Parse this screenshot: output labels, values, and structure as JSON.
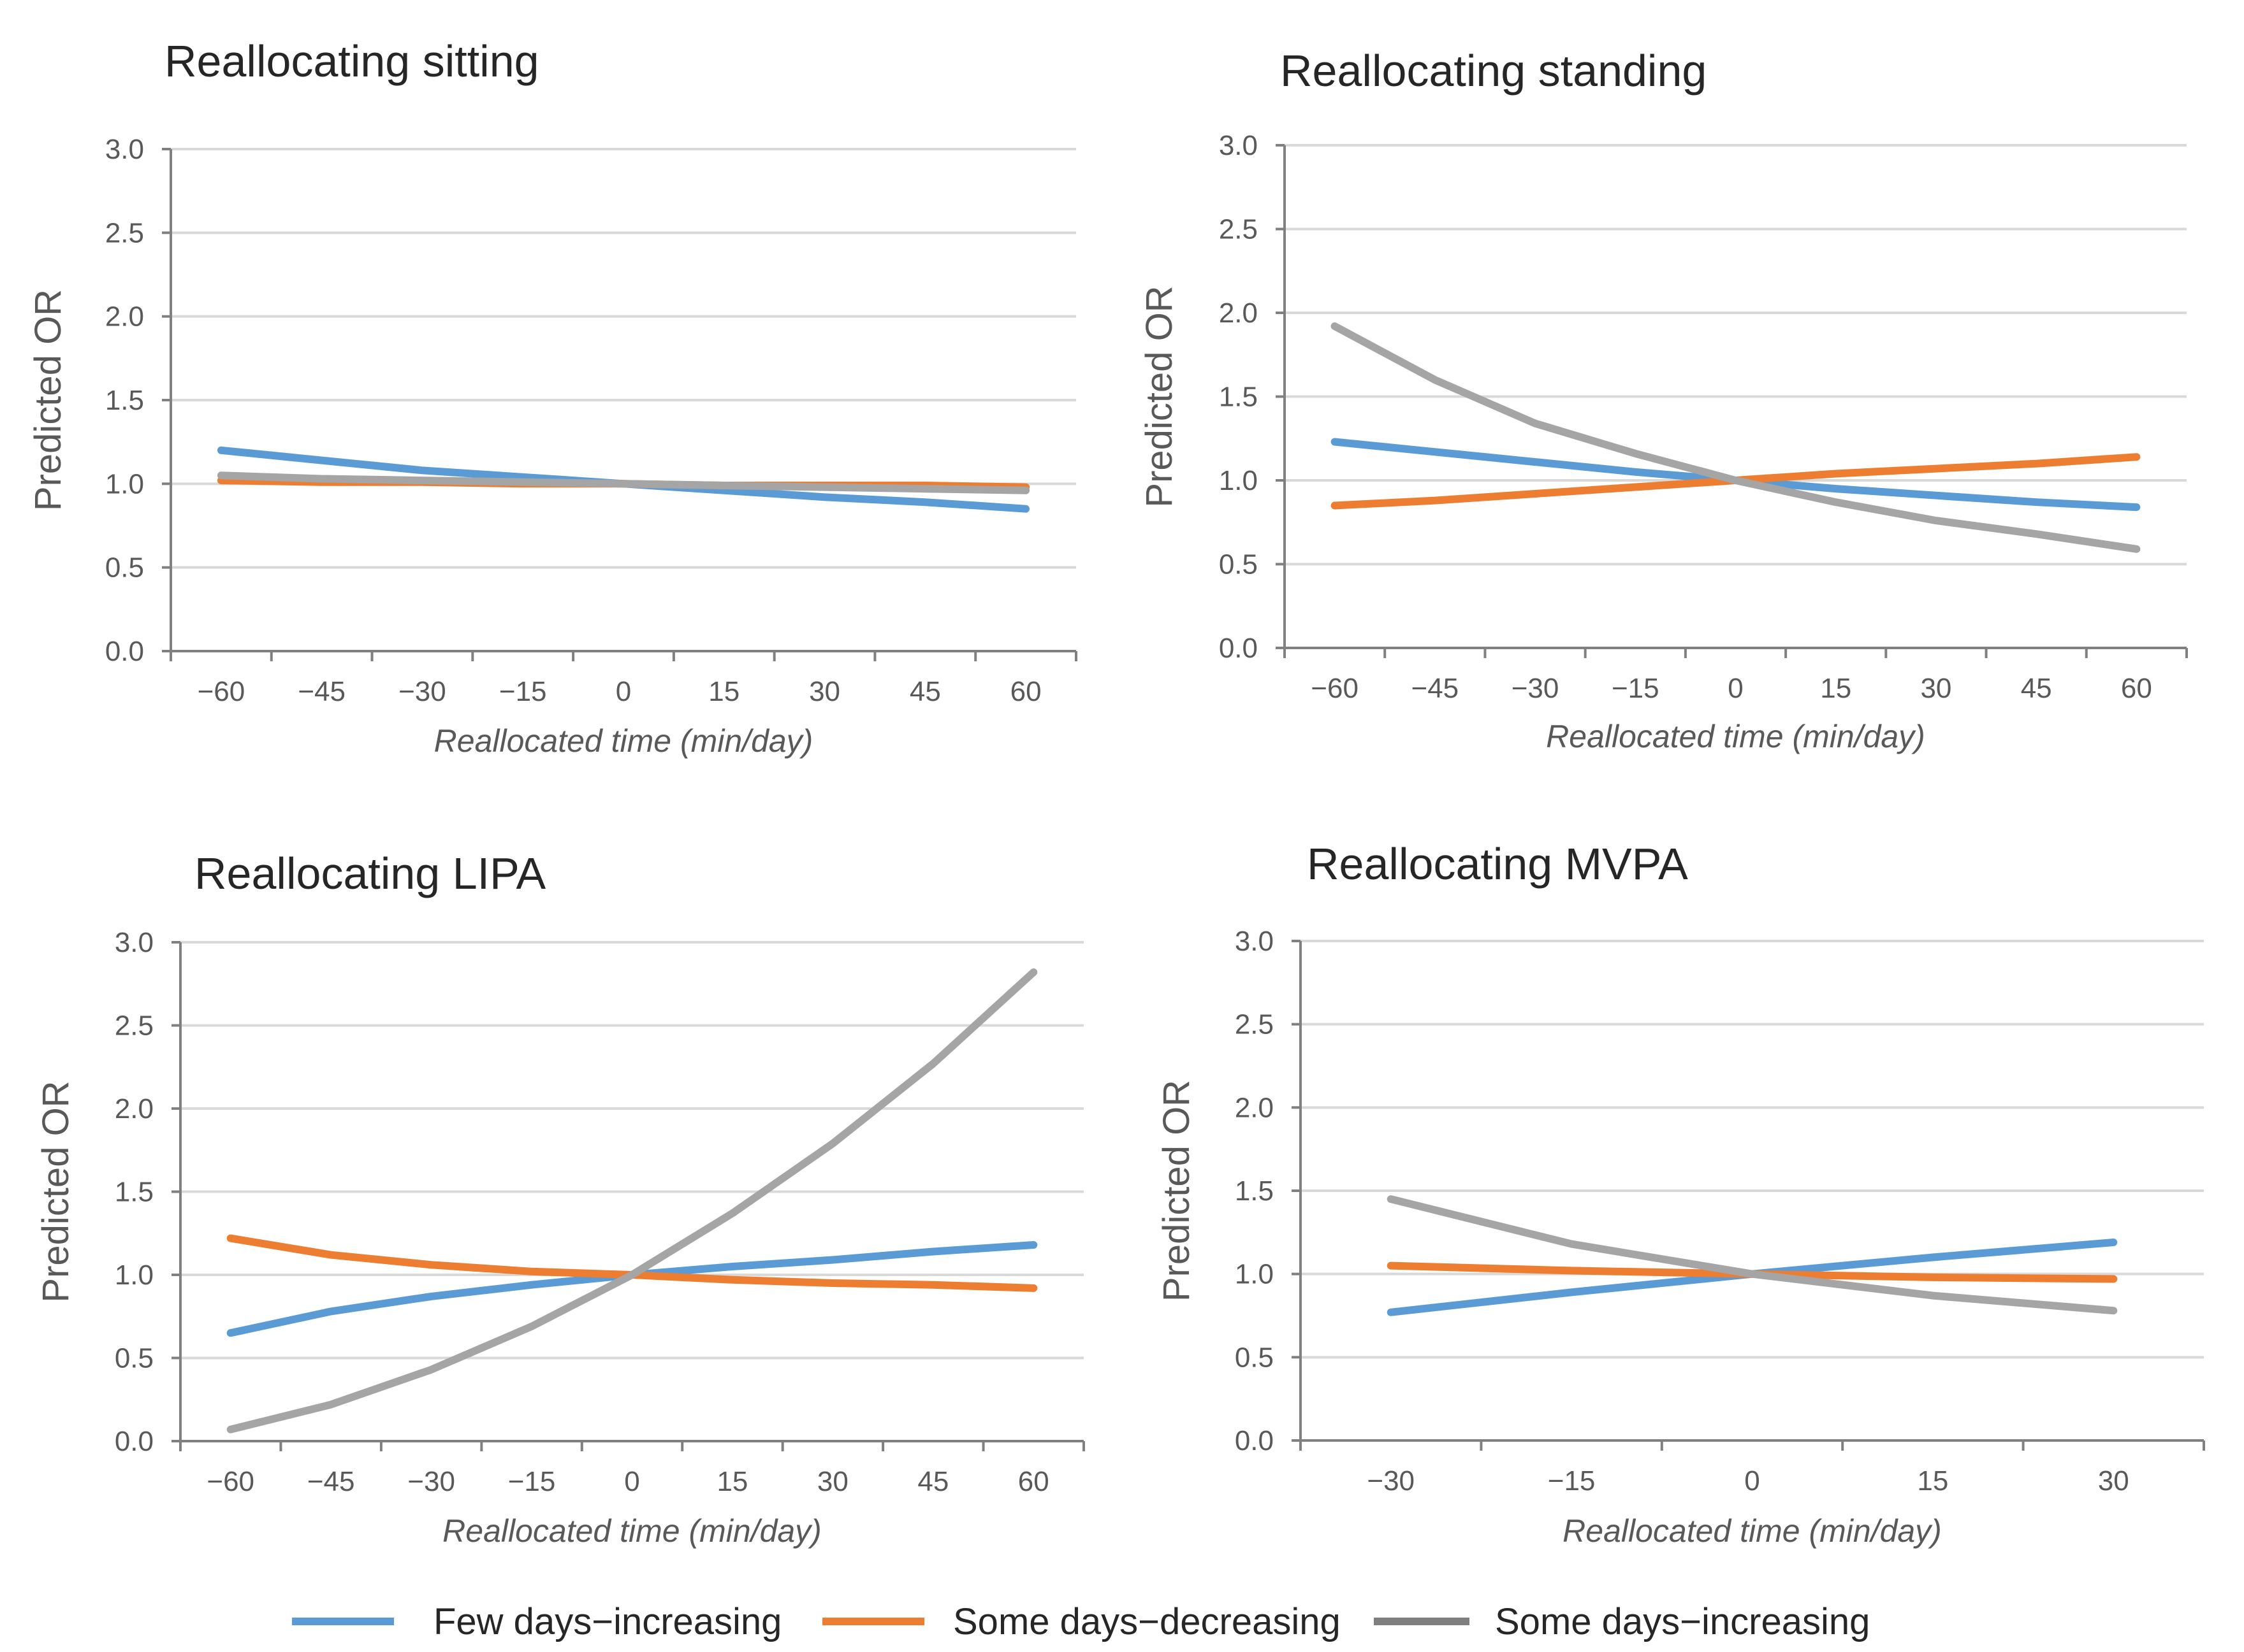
{
  "colors": {
    "few_days_increasing": "#5b9bd5",
    "some_days_decreasing": "#ed7d31",
    "some_days_increasing": "#a5a5a5",
    "legend_gray": "#7f7f7f"
  },
  "legend": [
    {
      "name": "Few days−increasing",
      "color": "#5b9bd5"
    },
    {
      "name": "Some days−decreasing",
      "color": "#ed7d31"
    },
    {
      "name": "Some days−increasing",
      "color": "#7f7f7f"
    }
  ],
  "chart_data": [
    {
      "type": "line",
      "title": "Reallocating sitting",
      "xlabel": "Reallocated time (min/day)",
      "ylabel": "Predicted OR",
      "ylim": [
        0,
        3
      ],
      "yticks": [
        "0.0",
        "0.5",
        "1.0",
        "1.5",
        "2.0",
        "2.5",
        "3.0"
      ],
      "x": [
        -60,
        -45,
        -30,
        -15,
        0,
        15,
        30,
        45,
        60
      ],
      "xticklabels": [
        "−60",
        "−45",
        "−30",
        "−15",
        "0",
        "15",
        "30",
        "45",
        "60"
      ],
      "series": [
        {
          "name": "Few days−increasing",
          "values": [
            1.2,
            1.14,
            1.08,
            1.04,
            1.0,
            0.96,
            0.92,
            0.89,
            0.85
          ]
        },
        {
          "name": "Some days−decreasing",
          "values": [
            1.02,
            1.01,
            1.01,
            1.0,
            1.0,
            0.99,
            0.99,
            0.99,
            0.98
          ]
        },
        {
          "name": "Some days−increasing",
          "values": [
            1.05,
            1.03,
            1.02,
            1.01,
            1.0,
            0.99,
            0.98,
            0.97,
            0.96
          ]
        }
      ]
    },
    {
      "type": "line",
      "title": "Reallocating standing",
      "xlabel": "Reallocated time (min/day)",
      "ylabel": "Predicted OR",
      "ylim": [
        0,
        3
      ],
      "yticks": [
        "0.0",
        "0.5",
        "1.0",
        "1.5",
        "2.0",
        "2.5",
        "3.0"
      ],
      "x": [
        -60,
        -45,
        -30,
        -15,
        0,
        15,
        30,
        45,
        60
      ],
      "xticklabels": [
        "−60",
        "−45",
        "−30",
        "−15",
        "0",
        "15",
        "30",
        "45",
        "60"
      ],
      "series": [
        {
          "name": "Few days−increasing",
          "values": [
            1.23,
            1.17,
            1.11,
            1.05,
            1.0,
            0.95,
            0.91,
            0.87,
            0.84
          ]
        },
        {
          "name": "Some days−decreasing",
          "values": [
            0.85,
            0.88,
            0.92,
            0.96,
            1.0,
            1.04,
            1.07,
            1.1,
            1.14
          ]
        },
        {
          "name": "Some days−increasing",
          "values": [
            1.92,
            1.6,
            1.34,
            1.16,
            1.0,
            0.87,
            0.76,
            0.68,
            0.59
          ]
        }
      ]
    },
    {
      "type": "line",
      "title": "Reallocating LIPA",
      "xlabel": "Reallocated time (min/day)",
      "ylabel": "Predicted OR",
      "ylim": [
        0,
        3
      ],
      "yticks": [
        "0.0",
        "0.5",
        "1.0",
        "1.5",
        "2.0",
        "2.5",
        "3.0"
      ],
      "x": [
        -60,
        -45,
        -30,
        -15,
        0,
        15,
        30,
        45,
        60
      ],
      "xticklabels": [
        "−60",
        "−45",
        "−30",
        "−15",
        "0",
        "15",
        "30",
        "45",
        "60"
      ],
      "series": [
        {
          "name": "Few days−increasing",
          "values": [
            0.65,
            0.78,
            0.87,
            0.94,
            1.0,
            1.05,
            1.09,
            1.14,
            1.18
          ]
        },
        {
          "name": "Some days−decreasing",
          "values": [
            1.22,
            1.12,
            1.06,
            1.02,
            1.0,
            0.97,
            0.95,
            0.94,
            0.92
          ]
        },
        {
          "name": "Some days−increasing",
          "values": [
            0.07,
            0.22,
            0.43,
            0.69,
            1.0,
            1.37,
            1.79,
            2.27,
            2.82
          ]
        }
      ]
    },
    {
      "type": "line",
      "title": "Reallocating MVPA",
      "xlabel": "Reallocated time (min/day)",
      "ylabel": "Predicted OR",
      "ylim": [
        0,
        3
      ],
      "yticks": [
        "0.0",
        "0.5",
        "1.0",
        "1.5",
        "2.0",
        "2.5",
        "3.0"
      ],
      "x": [
        -30,
        -15,
        0,
        15,
        30
      ],
      "xticklabels": [
        "−30",
        "−15",
        "0",
        "15",
        "30"
      ],
      "series": [
        {
          "name": "Few days−increasing",
          "values": [
            0.77,
            0.89,
            1.0,
            1.1,
            1.19
          ]
        },
        {
          "name": "Some days−decreasing",
          "values": [
            1.05,
            1.02,
            1.0,
            0.98,
            0.97
          ]
        },
        {
          "name": "Some days−increasing",
          "values": [
            1.45,
            1.18,
            1.0,
            0.87,
            0.78
          ]
        }
      ]
    }
  ]
}
